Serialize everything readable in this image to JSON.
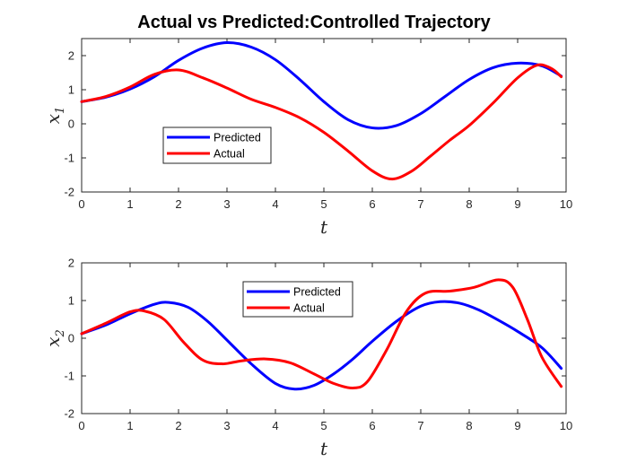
{
  "figure_title": "Actual vs Predicted:Controlled Trajectory",
  "chart_data": [
    {
      "type": "line",
      "title": "",
      "xlabel": "t",
      "ylabel": "x",
      "ylabel_subscript": "1",
      "xlim": [
        0,
        10
      ],
      "ylim": [
        -2,
        2.5
      ],
      "xticks": [
        0,
        1,
        2,
        3,
        4,
        5,
        6,
        7,
        8,
        9,
        10
      ],
      "yticks": [
        -2,
        -1,
        0,
        1,
        2
      ],
      "grid": false,
      "legend": "center-left",
      "series": [
        {
          "name": "Predicted",
          "color": "#0000ff",
          "x": [
            0,
            0.5,
            1,
            1.5,
            2,
            2.5,
            3,
            3.5,
            4,
            4.5,
            5,
            5.5,
            6,
            6.5,
            7,
            7.5,
            8,
            8.5,
            9,
            9.5,
            9.9
          ],
          "values": [
            0.65,
            0.78,
            1.02,
            1.38,
            1.86,
            2.22,
            2.38,
            2.25,
            1.88,
            1.3,
            0.65,
            0.12,
            -0.12,
            -0.05,
            0.3,
            0.8,
            1.3,
            1.65,
            1.78,
            1.7,
            1.4
          ]
        },
        {
          "name": "Actual",
          "color": "#ff0000",
          "x": [
            0,
            0.5,
            1,
            1.5,
            2,
            2.5,
            3,
            3.5,
            4,
            4.5,
            5,
            5.5,
            6,
            6.4,
            6.8,
            7.2,
            7.6,
            8,
            8.5,
            9,
            9.4,
            9.7,
            9.9
          ],
          "values": [
            0.65,
            0.8,
            1.08,
            1.45,
            1.58,
            1.35,
            1.05,
            0.72,
            0.48,
            0.18,
            -0.25,
            -0.8,
            -1.38,
            -1.62,
            -1.4,
            -0.95,
            -0.48,
            -0.05,
            0.62,
            1.35,
            1.72,
            1.62,
            1.38
          ]
        }
      ]
    },
    {
      "type": "line",
      "title": "",
      "xlabel": "t",
      "ylabel": "x",
      "ylabel_subscript": "2",
      "xlim": [
        0,
        10
      ],
      "ylim": [
        -2,
        2
      ],
      "xticks": [
        0,
        1,
        2,
        3,
        4,
        5,
        6,
        7,
        8,
        9,
        10
      ],
      "yticks": [
        -2,
        -1,
        0,
        1,
        2
      ],
      "grid": false,
      "legend": "top-center",
      "series": [
        {
          "name": "Predicted",
          "color": "#0000ff",
          "x": [
            0,
            0.5,
            1,
            1.5,
            1.8,
            2.2,
            2.6,
            3,
            3.5,
            4,
            4.4,
            4.8,
            5.2,
            5.6,
            6,
            6.5,
            7,
            7.4,
            7.8,
            8.2,
            8.6,
            9,
            9.5,
            9.9
          ],
          "values": [
            0.12,
            0.35,
            0.65,
            0.9,
            0.95,
            0.82,
            0.45,
            -0.05,
            -0.68,
            -1.2,
            -1.35,
            -1.25,
            -0.95,
            -0.55,
            -0.08,
            0.45,
            0.85,
            0.97,
            0.93,
            0.75,
            0.48,
            0.18,
            -0.25,
            -0.8
          ]
        },
        {
          "name": "Actual",
          "color": "#ff0000",
          "x": [
            0,
            0.5,
            1,
            1.3,
            1.7,
            2.1,
            2.5,
            2.9,
            3.3,
            3.8,
            4.3,
            4.8,
            5.2,
            5.6,
            5.9,
            6.3,
            6.7,
            7.1,
            7.6,
            8.1,
            8.6,
            8.9,
            9.2,
            9.5,
            9.9
          ],
          "values": [
            0.12,
            0.4,
            0.7,
            0.72,
            0.5,
            -0.1,
            -0.58,
            -0.68,
            -0.6,
            -0.55,
            -0.65,
            -0.95,
            -1.2,
            -1.32,
            -1.15,
            -0.3,
            0.7,
            1.2,
            1.25,
            1.35,
            1.55,
            1.35,
            0.5,
            -0.5,
            -1.28
          ]
        }
      ]
    }
  ]
}
